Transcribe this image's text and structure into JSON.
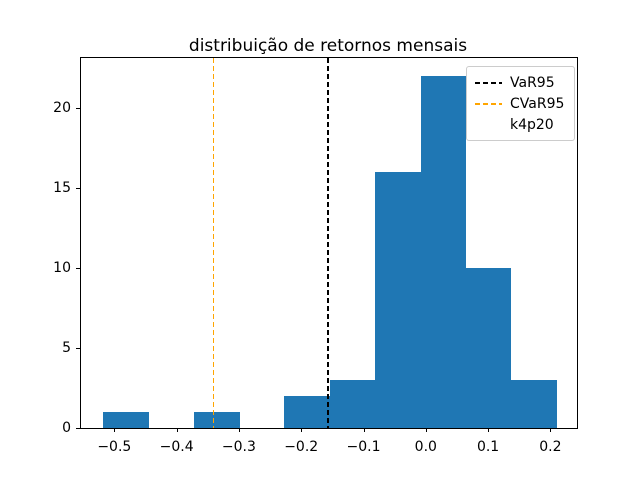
{
  "chart_data": {
    "type": "bar",
    "subtype": "histogram",
    "title": "distribuição de retornos mensais",
    "xlabel": "",
    "ylabel": "",
    "bar_color": "#1f77b4",
    "bin_edges": [
      -0.518,
      -0.445,
      -0.372,
      -0.299,
      -0.227,
      -0.154,
      -0.081,
      -0.008,
      0.064,
      0.137,
      0.21
    ],
    "counts": [
      1,
      0,
      1,
      0,
      2,
      3,
      16,
      22,
      10,
      3
    ],
    "xlim": [
      -0.5535,
      0.2427
    ],
    "ylim": [
      0,
      23.1
    ],
    "xticks": [
      -0.5,
      -0.4,
      -0.3,
      -0.2,
      -0.1,
      0.0,
      0.1,
      0.2
    ],
    "xtick_labels": [
      "−0.5",
      "−0.4",
      "−0.3",
      "−0.2",
      "−0.1",
      "0.0",
      "0.1",
      "0.2"
    ],
    "yticks": [
      0,
      5,
      10,
      15,
      20
    ],
    "ytick_labels": [
      "0",
      "5",
      "10",
      "15",
      "20"
    ],
    "grid": false,
    "vlines": [
      {
        "name": "VaR95",
        "x": -0.158,
        "color": "#000000",
        "style": "dashed"
      },
      {
        "name": "CVaR95",
        "x": -0.342,
        "color": "#ffa500",
        "style": "dashed"
      }
    ],
    "legend": {
      "position": "upper right",
      "entries": [
        {
          "label": "VaR95",
          "handle": "dashed-line",
          "color": "#000000"
        },
        {
          "label": "CVaR95",
          "handle": "dashed-line",
          "color": "#ffa500"
        },
        {
          "label": "k4p20",
          "handle": "none",
          "color": ""
        }
      ]
    }
  }
}
